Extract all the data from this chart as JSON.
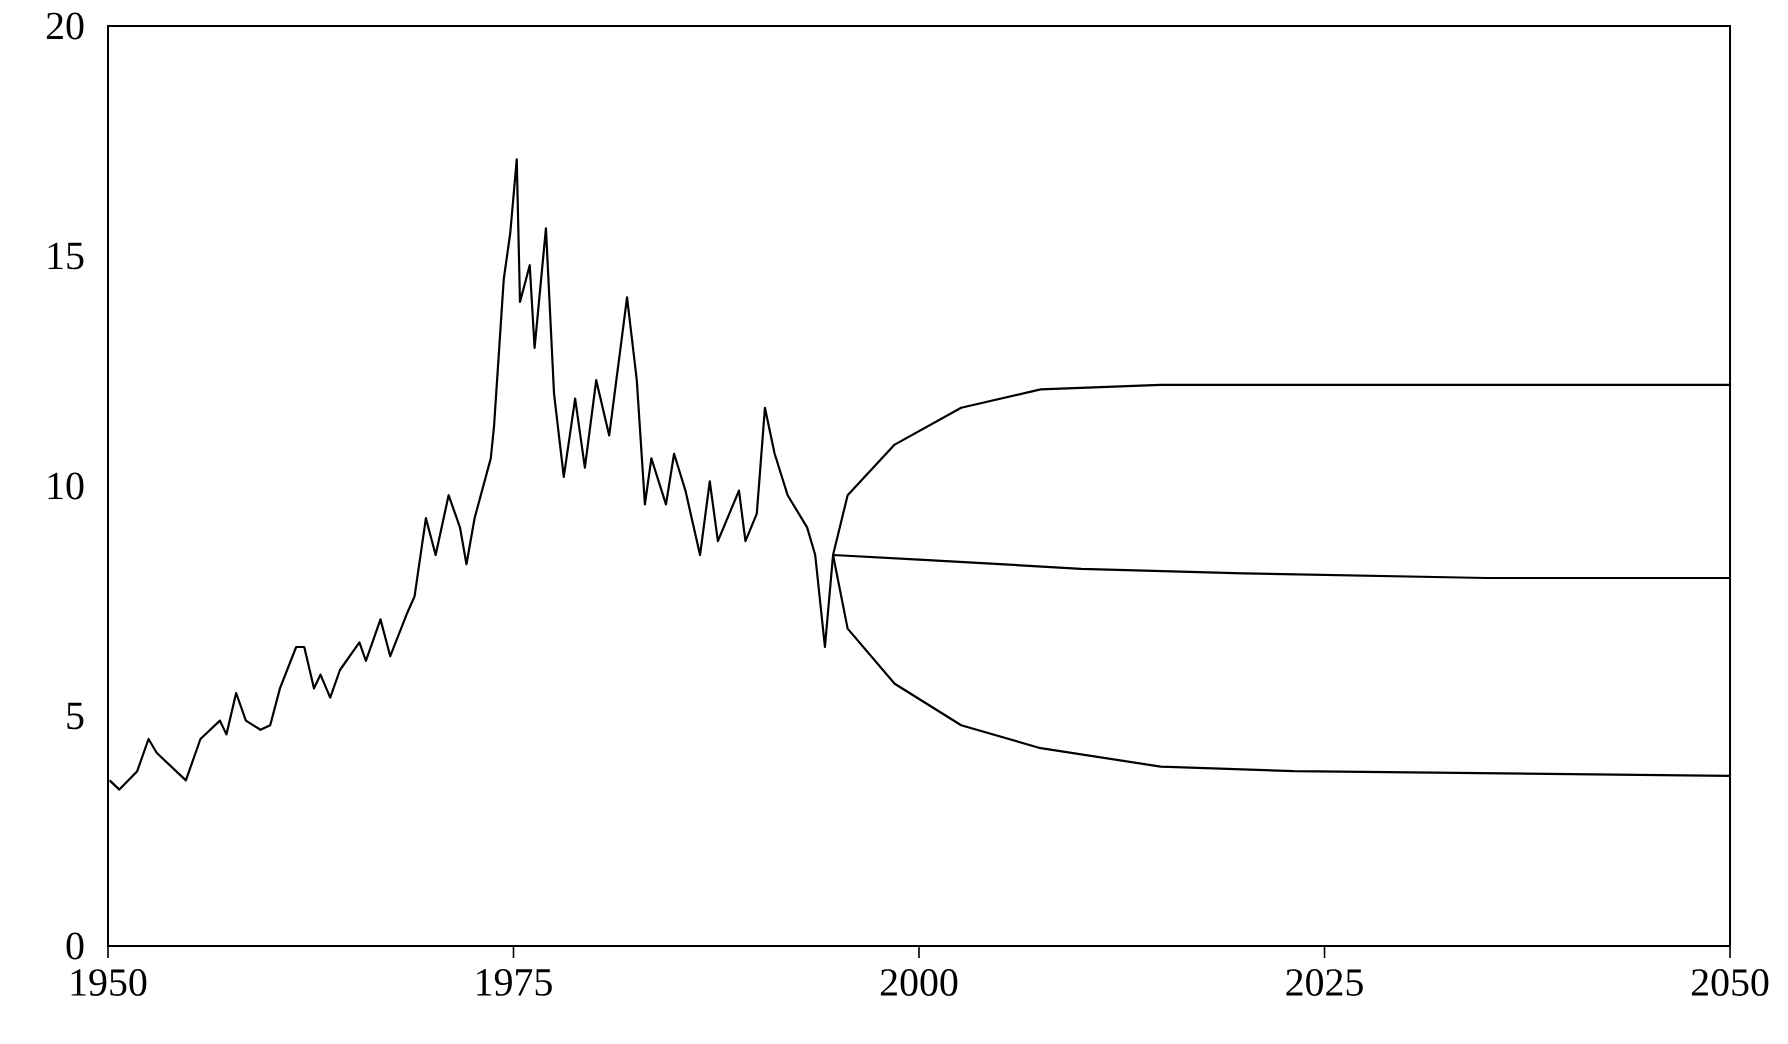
{
  "chart_data": {
    "type": "line",
    "xlim": [
      1950,
      2050
    ],
    "xticks": [
      1950,
      1975,
      2000,
      2025,
      2050
    ],
    "ylim": [
      0,
      20
    ],
    "yticks": [
      0,
      5,
      10,
      15,
      20
    ],
    "series": [
      {
        "color": "#000000",
        "x": [
          1950.1,
          1950.7,
          1951.8,
          1952.5,
          1953,
          1954.8,
          1955.7,
          1956.9,
          1957.3,
          1957.9,
          1958.5,
          1959.4,
          1960,
          1960.6,
          1961.6,
          1962.1,
          1962.7,
          1963.1,
          1963.7,
          1964.3,
          1965.5,
          1965.9,
          1966.8,
          1967.4,
          1968.4,
          1968.9,
          1969.6,
          1970.2,
          1971,
          1971.7,
          1972.1,
          1972.6,
          1973.6,
          1973.8,
          1974.4,
          1974.8,
          1975.2,
          1975.4,
          1976,
          1976.3,
          1977,
          1977.5,
          1978.1,
          1978.8,
          1979.4,
          1980.1,
          1980.9,
          1982,
          1982.6,
          1983.1,
          1983.5,
          1984.4,
          1984.9,
          1985.6,
          1986.5,
          1987.1,
          1987.6,
          1988.9,
          1989.3,
          1990,
          1990.5,
          1991.1,
          1991.9,
          1993.1,
          1993.6,
          1994.2,
          1994.7,
          2000,
          2010,
          2020,
          2035,
          2050
        ],
        "values": [
          3.6,
          3.4,
          3.8,
          4.5,
          4.2,
          3.6,
          4.5,
          4.9,
          4.6,
          5.5,
          4.9,
          4.7,
          4.8,
          5.6,
          6.5,
          6.5,
          5.6,
          5.9,
          5.4,
          6.0,
          6.6,
          6.2,
          7.1,
          6.3,
          7.2,
          7.6,
          9.3,
          8.5,
          9.8,
          9.1,
          8.3,
          9.3,
          10.6,
          11.3,
          14.5,
          15.5,
          17.1,
          14.0,
          14.8,
          13.0,
          15.6,
          12.0,
          10.2,
          11.9,
          10.4,
          12.3,
          11.1,
          14.1,
          12.3,
          9.6,
          10.6,
          9.6,
          10.7,
          9.9,
          8.5,
          10.1,
          8.8,
          9.9,
          8.8,
          9.4,
          11.7,
          10.7,
          9.8,
          9.1,
          8.5,
          6.5,
          8.5,
          8.4,
          8.2,
          8.1,
          8.0,
          8.0
        ]
      },
      {
        "color": "#000000",
        "x": [
          2050,
          2023.1,
          2014.9,
          2007.5,
          2002.6,
          1998.5,
          1995.6,
          1994.7,
          1995.6,
          1998.5,
          2002.6,
          2007.5,
          2014.9,
          2050
        ],
        "values": [
          3.7,
          3.8,
          3.9,
          4.3,
          4.8,
          5.7,
          6.9,
          8.5,
          9.8,
          10.9,
          11.7,
          12.1,
          12.2,
          12.2
        ]
      }
    ]
  }
}
